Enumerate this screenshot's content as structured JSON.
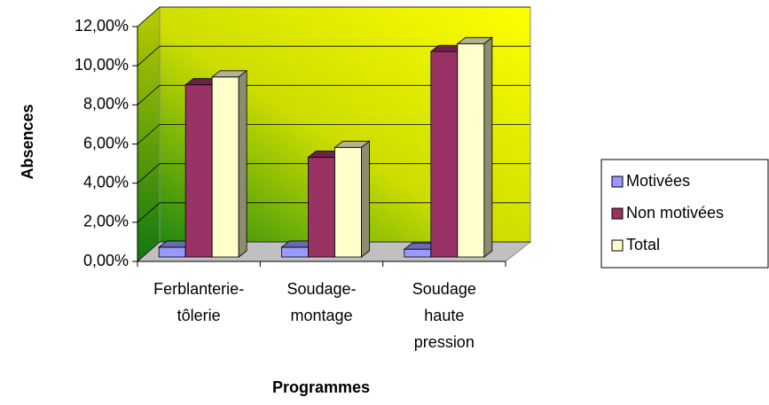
{
  "chart_data": {
    "type": "bar3d",
    "categories": [
      "Ferblanterie-\ntôlerie",
      "Soudage-\nmontage",
      "Soudage\nhaute\npression"
    ],
    "series": [
      {
        "name": "Motivées",
        "color": "#9999ff",
        "values": [
          0.5,
          0.5,
          0.4
        ]
      },
      {
        "name": "Non motivées",
        "color": "#993366",
        "values": [
          8.8,
          5.1,
          10.5
        ]
      },
      {
        "name": "Total",
        "color": "#ffffcc",
        "values": [
          9.2,
          5.6,
          10.9
        ]
      }
    ],
    "ylabel": "Absences",
    "xlabel": "Programmes",
    "ylim": [
      0,
      12
    ],
    "yticks": [
      {
        "value": 0,
        "label": "0,00%"
      },
      {
        "value": 2,
        "label": "2,00%"
      },
      {
        "value": 4,
        "label": "4,00%"
      },
      {
        "value": 6,
        "label": "6,00%"
      },
      {
        "value": 8,
        "label": "8,00%"
      },
      {
        "value": 10,
        "label": "10,00%"
      },
      {
        "value": 12,
        "label": "12,00%"
      }
    ],
    "grid": true,
    "legend": "right"
  }
}
